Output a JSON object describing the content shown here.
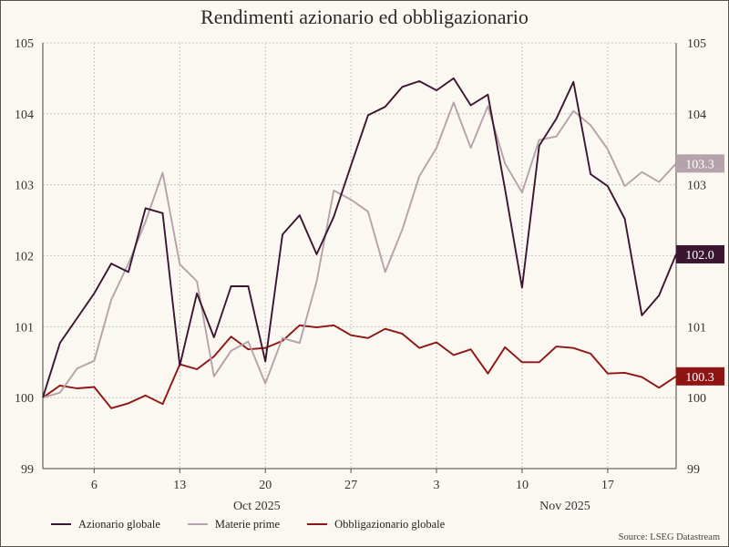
{
  "chart_data": {
    "type": "line",
    "title": "Rendimenti azionario ed obbligazionario",
    "source": "Source: LSEG Datastream",
    "ylim": [
      99,
      105
    ],
    "y_ticks": [
      "99",
      "100",
      "101",
      "102",
      "103",
      "104",
      "105"
    ],
    "x": [
      "Oct 1",
      "Oct 2",
      "Oct 3",
      "Oct 6",
      "Oct 7",
      "Oct 8",
      "Oct 9",
      "Oct 10",
      "Oct 13",
      "Oct 14",
      "Oct 15",
      "Oct 16",
      "Oct 17",
      "Oct 20",
      "Oct 21",
      "Oct 22",
      "Oct 23",
      "Oct 24",
      "Oct 27",
      "Oct 28",
      "Oct 29",
      "Oct 30",
      "Oct 31",
      "Nov 3",
      "Nov 4",
      "Nov 5",
      "Nov 6",
      "Nov 7",
      "Nov 10",
      "Nov 11",
      "Nov 12",
      "Nov 13",
      "Nov 14",
      "Nov 17",
      "Nov 18",
      "Nov 19",
      "Nov 20",
      "Nov 21"
    ],
    "x_tick_labels": [
      {
        "index": 3,
        "label": "6"
      },
      {
        "index": 8,
        "label": "13"
      },
      {
        "index": 13,
        "label": "20"
      },
      {
        "index": 18,
        "label": "27"
      },
      {
        "index": 23,
        "label": "3"
      },
      {
        "index": 28,
        "label": "10"
      },
      {
        "index": 33,
        "label": "17"
      }
    ],
    "x_month_labels": [
      {
        "index": 12.5,
        "label": "Oct 2025"
      },
      {
        "index": 30.5,
        "label": "Nov 2025"
      }
    ],
    "grid": true,
    "legend_position": "bottom-left",
    "series": [
      {
        "name": "Azionario globale",
        "color": "#3b1630",
        "end_label": "102.0",
        "values": [
          100.0,
          100.77,
          101.12,
          101.47,
          101.89,
          101.77,
          102.67,
          102.6,
          100.45,
          101.47,
          100.85,
          101.57,
          101.57,
          100.51,
          102.3,
          102.57,
          102.02,
          102.55,
          103.27,
          103.98,
          104.1,
          104.38,
          104.46,
          104.33,
          104.5,
          104.12,
          104.27,
          102.94,
          101.55,
          103.55,
          103.93,
          104.45,
          103.15,
          102.98,
          102.52,
          101.16,
          101.44,
          102.02
        ]
      },
      {
        "name": "Materie prime",
        "color": "#b5a2ab",
        "end_label": "103.3",
        "values": [
          100.0,
          100.07,
          100.41,
          100.52,
          101.38,
          101.89,
          102.48,
          103.17,
          101.88,
          101.64,
          100.3,
          100.66,
          100.79,
          100.2,
          100.84,
          100.77,
          101.64,
          102.92,
          102.79,
          102.62,
          101.77,
          102.37,
          103.12,
          103.52,
          104.16,
          103.52,
          104.11,
          103.3,
          102.89,
          103.63,
          103.68,
          104.04,
          103.84,
          103.5,
          102.98,
          103.18,
          103.04,
          103.3
        ]
      },
      {
        "name": "Obbligazionario globale",
        "color": "#8f1414",
        "end_label": "100.3",
        "values": [
          100.0,
          100.17,
          100.13,
          100.15,
          99.85,
          99.92,
          100.03,
          99.91,
          100.47,
          100.4,
          100.58,
          100.86,
          100.68,
          100.7,
          100.8,
          101.02,
          100.99,
          101.02,
          100.88,
          100.84,
          100.97,
          100.9,
          100.7,
          100.78,
          100.6,
          100.68,
          100.34,
          100.71,
          100.5,
          100.5,
          100.72,
          100.7,
          100.62,
          100.34,
          100.35,
          100.29,
          100.14,
          100.3
        ]
      }
    ]
  }
}
